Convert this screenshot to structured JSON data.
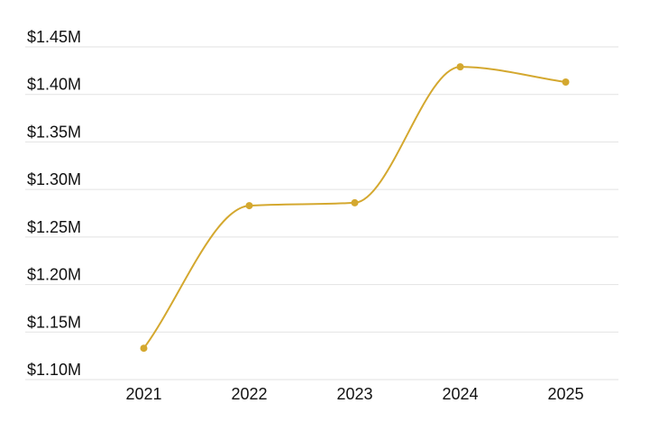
{
  "chart_data": {
    "type": "line",
    "categories": [
      "2021",
      "2022",
      "2023",
      "2024",
      "2025"
    ],
    "values": [
      1133000,
      1283000,
      1286000,
      1429000,
      1413000
    ],
    "color": "#d4a82f",
    "ylim": [
      1100000,
      1450000
    ],
    "yticks": [
      {
        "value": 1100000,
        "label": "$1.10M"
      },
      {
        "value": 1150000,
        "label": "$1.15M"
      },
      {
        "value": 1200000,
        "label": "$1.20M"
      },
      {
        "value": 1250000,
        "label": "$1.25M"
      },
      {
        "value": 1300000,
        "label": "$1.30M"
      },
      {
        "value": 1350000,
        "label": "$1.35M"
      },
      {
        "value": 1400000,
        "label": "$1.40M"
      },
      {
        "value": 1450000,
        "label": "$1.45M"
      }
    ],
    "grid": true
  }
}
